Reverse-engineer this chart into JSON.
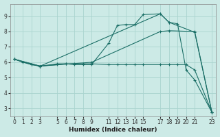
{
  "xlabel": "Humidex (Indice chaleur)",
  "bg_color": "#cceae6",
  "grid_color": "#aad4cf",
  "line_color": "#1a6e66",
  "xlim": [
    -0.5,
    23.5
  ],
  "ylim": [
    2.5,
    9.8
  ],
  "xticks": [
    0,
    1,
    2,
    3,
    5,
    6,
    7,
    8,
    9,
    11,
    12,
    13,
    14,
    15,
    17,
    18,
    19,
    20,
    21,
    23
  ],
  "yticks": [
    3,
    4,
    5,
    6,
    7,
    8,
    9
  ],
  "xlabel_fontsize": 6.5,
  "tick_fontsize": 5.5,
  "lines": [
    {
      "x": [
        0,
        1,
        2,
        3,
        5,
        6,
        7,
        8,
        9,
        11,
        12,
        13,
        14,
        15,
        17,
        18,
        19,
        20,
        21,
        23
      ],
      "y": [
        6.2,
        6.0,
        5.85,
        5.75,
        5.85,
        5.9,
        5.85,
        5.85,
        5.85,
        7.25,
        8.4,
        8.45,
        8.45,
        9.1,
        9.15,
        8.6,
        8.5,
        5.5,
        4.85,
        2.75
      ]
    },
    {
      "x": [
        0,
        2,
        3,
        5,
        6,
        7,
        8,
        9,
        11,
        12,
        13,
        14,
        15,
        17,
        18,
        19,
        20,
        21,
        23
      ],
      "y": [
        6.2,
        5.85,
        5.75,
        5.9,
        5.9,
        5.9,
        5.9,
        5.9,
        5.85,
        5.85,
        5.85,
        5.85,
        5.85,
        5.85,
        5.85,
        5.85,
        5.85,
        5.5,
        2.75
      ]
    },
    {
      "x": [
        0,
        3,
        17,
        18,
        21,
        23
      ],
      "y": [
        6.2,
        5.75,
        9.15,
        8.6,
        7.95,
        2.75
      ]
    },
    {
      "x": [
        0,
        3,
        9,
        17,
        18,
        21,
        23
      ],
      "y": [
        6.2,
        5.75,
        6.0,
        8.0,
        8.05,
        8.0,
        2.75
      ]
    }
  ]
}
